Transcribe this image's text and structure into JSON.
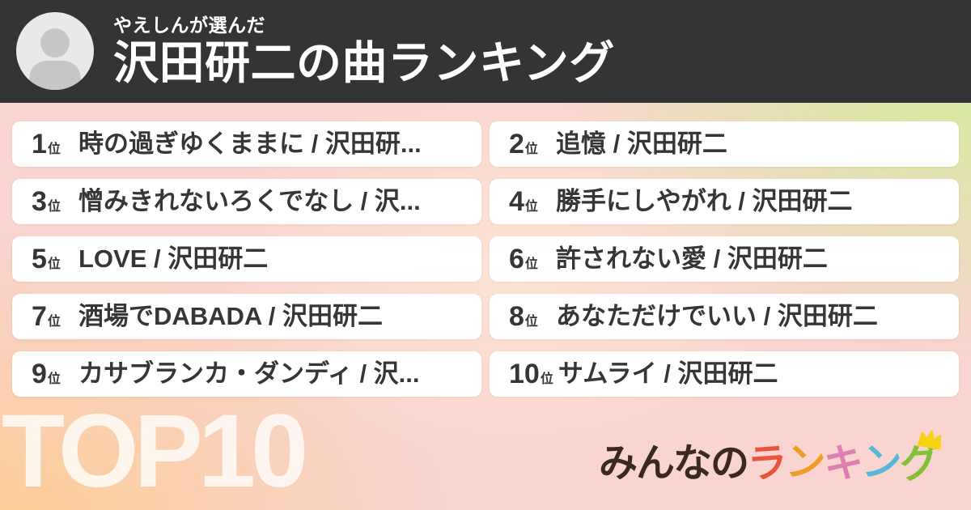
{
  "header": {
    "chooser": "やえしんが選んだ",
    "title": "沢田研二の曲ランキング",
    "avatar_icon": "person-icon",
    "bg_color": "#333436"
  },
  "ranking": {
    "items": [
      {
        "rank": "1",
        "suffix": "位",
        "song": "時の過ぎゆくままに / 沢田研..."
      },
      {
        "rank": "2",
        "suffix": "位",
        "song": "追憶 / 沢田研二"
      },
      {
        "rank": "3",
        "suffix": "位",
        "song": "憎みきれないろくでなし / 沢..."
      },
      {
        "rank": "4",
        "suffix": "位",
        "song": "勝手にしやがれ / 沢田研二"
      },
      {
        "rank": "5",
        "suffix": "位",
        "song": "LOVE / 沢田研二"
      },
      {
        "rank": "6",
        "suffix": "位",
        "song": "許されない愛 / 沢田研二"
      },
      {
        "rank": "7",
        "suffix": "位",
        "song": "酒場でDABADA / 沢田研二"
      },
      {
        "rank": "8",
        "suffix": "位",
        "song": "あなただけでいい / 沢田研二"
      },
      {
        "rank": "9",
        "suffix": "位",
        "song": "カサブランカ・ダンディ / 沢..."
      },
      {
        "rank": "10",
        "suffix": "位",
        "song": "サムライ / 沢田研二"
      }
    ]
  },
  "footer": {
    "top_label": "TOP10",
    "logo": {
      "prefix": "みんなの",
      "prefix_color": "#3a2a1c",
      "colored_chars": [
        {
          "char": "ラ",
          "color": "#e8543e"
        },
        {
          "char": "ン",
          "color": "#ef9d28"
        },
        {
          "char": "キ",
          "color": "#de7fb2"
        },
        {
          "char": "ン",
          "color": "#56b7d8"
        },
        {
          "char": "グ",
          "color": "#82c135"
        }
      ],
      "crown_icon_color": "#f6d313"
    }
  },
  "background": {
    "base_pink": "#f9d4d0",
    "green_topright": "#d2ec98",
    "orange_bottomleft": "#facd96",
    "card_bg": "#ffffff",
    "text_color": "#363636"
  }
}
